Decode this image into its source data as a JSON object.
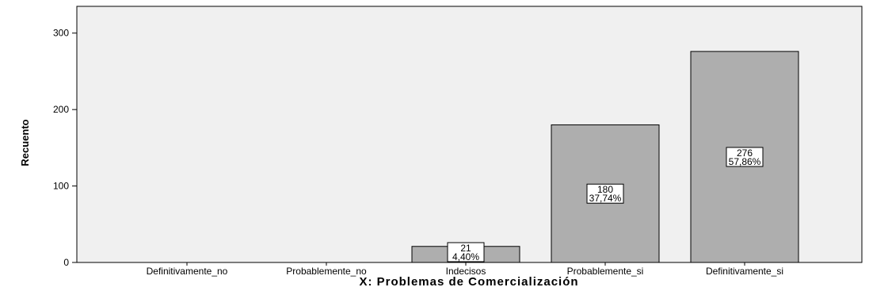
{
  "chart_data": {
    "type": "bar",
    "categories": [
      "Definitivamente_no",
      "Probablemente_no",
      "Indecisos",
      "Probablemente_si",
      "Definitivamente_si"
    ],
    "values": [
      0,
      0,
      21,
      180,
      276
    ],
    "percent_labels": [
      "",
      "",
      "4,40%",
      "37,74%",
      "57,86%"
    ],
    "count_labels": [
      "",
      "",
      "21",
      "180",
      "276"
    ],
    "xlabel": "X: Problemas de Comercialización",
    "ylabel": "Recuento",
    "ylim": [
      0,
      335
    ],
    "yticks": [
      "0",
      "100",
      "200",
      "300"
    ],
    "grid": false,
    "colors": {
      "plot_background": "#f0f0f0",
      "bar_fill": "#aeaeae",
      "bar_stroke": "#000000"
    }
  }
}
